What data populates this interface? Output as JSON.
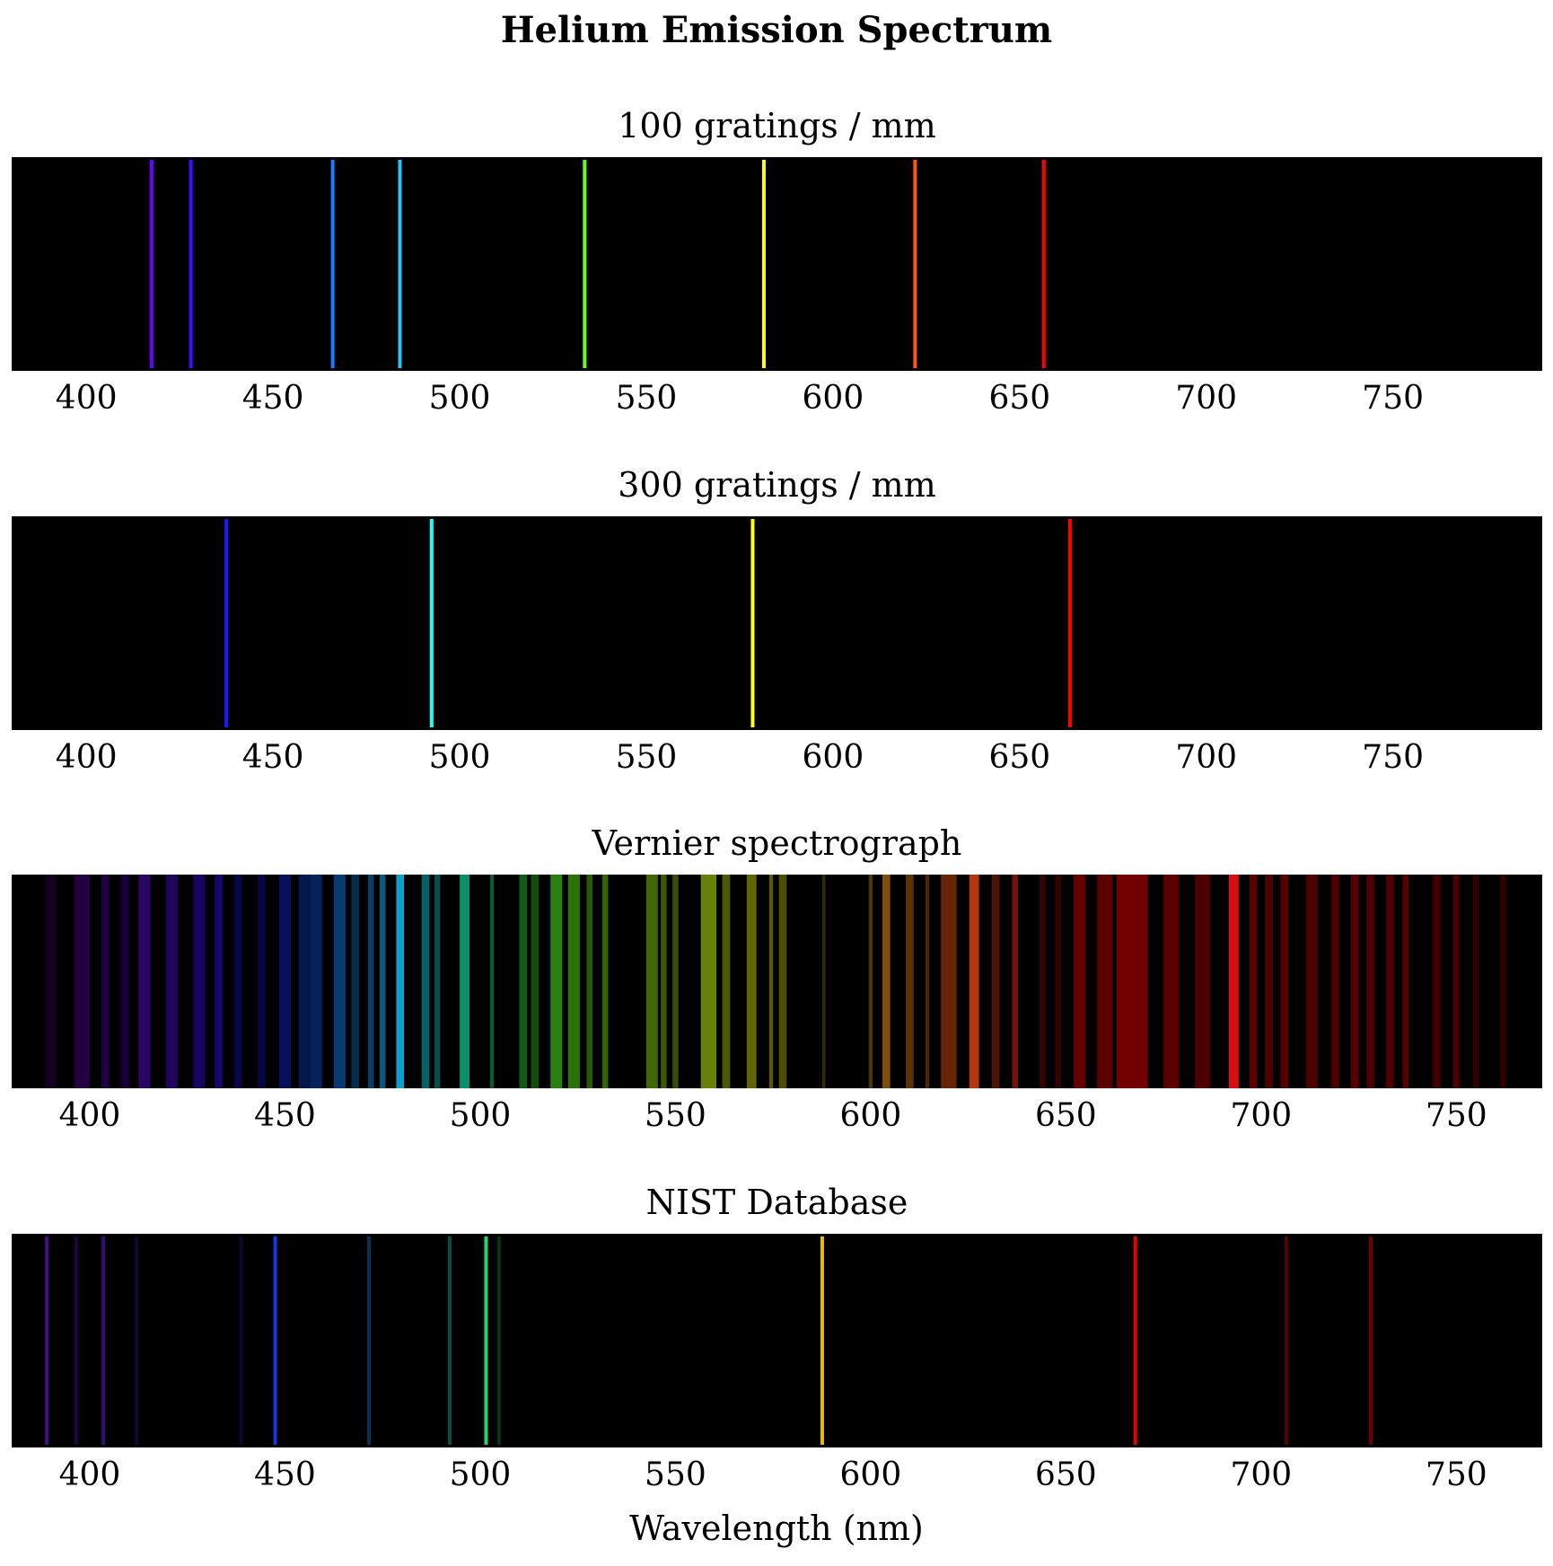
{
  "figure": {
    "title": "Helium Emission Spectrum",
    "xlabel": "Wavelength (nm)"
  },
  "chart_data": [
    {
      "type": "spectrum",
      "title": "100 gratings / mm",
      "xlim": [
        380,
        790
      ],
      "ticks": [
        400,
        450,
        500,
        550,
        600,
        650,
        700,
        750
      ],
      "background": "#000000",
      "lines": [
        {
          "wl": 417.5,
          "color": "#6a00ff",
          "intensity": 1
        },
        {
          "wl": 428,
          "color": "#3a10ff",
          "intensity": 1
        },
        {
          "wl": 466,
          "color": "#1a7cff",
          "intensity": 1
        },
        {
          "wl": 484,
          "color": "#1ec8ff",
          "intensity": 1
        },
        {
          "wl": 533.5,
          "color": "#66ff1a",
          "intensity": 1
        },
        {
          "wl": 581.5,
          "color": "#ffff00",
          "intensity": 1
        },
        {
          "wl": 622,
          "color": "#ff5a00",
          "intensity": 1
        },
        {
          "wl": 656.5,
          "color": "#ff0000",
          "intensity": 1
        }
      ]
    },
    {
      "type": "spectrum",
      "title": "300 gratings / mm",
      "xlim": [
        380,
        790
      ],
      "ticks": [
        400,
        450,
        500,
        550,
        600,
        650,
        700,
        750
      ],
      "background": "#000000",
      "lines": [
        {
          "wl": 437.5,
          "color": "#1a1aff",
          "intensity": 1
        },
        {
          "wl": 492.5,
          "color": "#1affff",
          "intensity": 1
        },
        {
          "wl": 578.5,
          "color": "#ffff1a",
          "intensity": 1
        },
        {
          "wl": 663.5,
          "color": "#ff0000",
          "intensity": 1
        }
      ]
    },
    {
      "type": "spectrum",
      "title": "Vernier spectrograph",
      "xlim": [
        380,
        772
      ],
      "ticks": [
        400,
        450,
        500,
        550,
        600,
        650,
        700,
        750
      ],
      "background": "#000000",
      "bands": [
        {
          "wl": 390,
          "width": 3,
          "color": "#4a007a",
          "intensity": 0.25
        },
        {
          "wl": 398,
          "width": 4,
          "color": "#5a00a0",
          "intensity": 0.4
        },
        {
          "wl": 404,
          "width": 2,
          "color": "#5a00c0",
          "intensity": 0.35
        },
        {
          "wl": 409,
          "width": 2,
          "color": "#5000d0",
          "intensity": 0.3
        },
        {
          "wl": 414,
          "width": 3,
          "color": "#6010e0",
          "intensity": 0.45
        },
        {
          "wl": 421,
          "width": 3,
          "color": "#4a10e0",
          "intensity": 0.4
        },
        {
          "wl": 428,
          "width": 3,
          "color": "#3a10f0",
          "intensity": 0.4
        },
        {
          "wl": 433,
          "width": 2,
          "color": "#2a10f0",
          "intensity": 0.45
        },
        {
          "wl": 438,
          "width": 2,
          "color": "#2010f0",
          "intensity": 0.3
        },
        {
          "wl": 444,
          "width": 2,
          "color": "#1010f0",
          "intensity": 0.3
        },
        {
          "wl": 450,
          "width": 3,
          "color": "#1030ff",
          "intensity": 0.35
        },
        {
          "wl": 455,
          "width": 3,
          "color": "#1050ff",
          "intensity": 0.3
        },
        {
          "wl": 458,
          "width": 3,
          "color": "#1060ff",
          "intensity": 0.35
        },
        {
          "wl": 464,
          "width": 3,
          "color": "#1080ff",
          "intensity": 0.45
        },
        {
          "wl": 468,
          "width": 2,
          "color": "#1090ff",
          "intensity": 0.3
        },
        {
          "wl": 472,
          "width": 1.5,
          "color": "#10a0ff",
          "intensity": 0.4
        },
        {
          "wl": 475,
          "width": 1.5,
          "color": "#10b0ff",
          "intensity": 0.5
        },
        {
          "wl": 479.5,
          "width": 2,
          "color": "#10c8ff",
          "intensity": 0.8
        },
        {
          "wl": 486,
          "width": 2,
          "color": "#10d8e0",
          "intensity": 0.45
        },
        {
          "wl": 489,
          "width": 1.5,
          "color": "#10e0d0",
          "intensity": 0.35
        },
        {
          "wl": 496,
          "width": 2.5,
          "color": "#10f0b0",
          "intensity": 0.6
        },
        {
          "wl": 503,
          "width": 1,
          "color": "#20ff80",
          "intensity": 0.35
        },
        {
          "wl": 511,
          "width": 2,
          "color": "#30ff40",
          "intensity": 0.35
        },
        {
          "wl": 514,
          "width": 2,
          "color": "#40ff30",
          "intensity": 0.3
        },
        {
          "wl": 519.5,
          "width": 3,
          "color": "#50ff20",
          "intensity": 0.5
        },
        {
          "wl": 524,
          "width": 3,
          "color": "#60ff10",
          "intensity": 0.45
        },
        {
          "wl": 528,
          "width": 1.5,
          "color": "#70ff10",
          "intensity": 0.35
        },
        {
          "wl": 532,
          "width": 1.5,
          "color": "#80ff10",
          "intensity": 0.4
        },
        {
          "wl": 544,
          "width": 3,
          "color": "#a0ff10",
          "intensity": 0.4
        },
        {
          "wl": 547,
          "width": 1.5,
          "color": "#b0ff10",
          "intensity": 0.35
        },
        {
          "wl": 550,
          "width": 1.5,
          "color": "#b8ff10",
          "intensity": 0.3
        },
        {
          "wl": 558.5,
          "width": 4,
          "color": "#d0ff10",
          "intensity": 0.5
        },
        {
          "wl": 563,
          "width": 2,
          "color": "#e0ff10",
          "intensity": 0.35
        },
        {
          "wl": 569.5,
          "width": 2.5,
          "color": "#f0ff10",
          "intensity": 0.4
        },
        {
          "wl": 574.5,
          "width": 1,
          "color": "#ffff10",
          "intensity": 0.35
        },
        {
          "wl": 577.5,
          "width": 2,
          "color": "#ffff10",
          "intensity": 0.3
        },
        {
          "wl": 588,
          "width": 0.8,
          "color": "#ffdd10",
          "intensity": 0.2
        },
        {
          "wl": 600,
          "width": 1,
          "color": "#ffb010",
          "intensity": 0.3
        },
        {
          "wl": 604,
          "width": 2,
          "color": "#ffa010",
          "intensity": 0.5
        },
        {
          "wl": 610,
          "width": 2,
          "color": "#ff9010",
          "intensity": 0.35
        },
        {
          "wl": 614.5,
          "width": 1,
          "color": "#ff8010",
          "intensity": 0.3
        },
        {
          "wl": 620,
          "width": 4,
          "color": "#ff6010",
          "intensity": 0.4
        },
        {
          "wl": 626.5,
          "width": 2.5,
          "color": "#ff5010",
          "intensity": 0.7
        },
        {
          "wl": 632,
          "width": 2,
          "color": "#ff4010",
          "intensity": 0.3
        },
        {
          "wl": 637,
          "width": 1.5,
          "color": "#ff3010",
          "intensity": 0.45
        },
        {
          "wl": 644,
          "width": 1.5,
          "color": "#ff2010",
          "intensity": 0.2
        },
        {
          "wl": 648,
          "width": 1.5,
          "color": "#ff1010",
          "intensity": 0.2
        },
        {
          "wl": 653.5,
          "width": 3,
          "color": "#ff0000",
          "intensity": 0.4
        },
        {
          "wl": 660,
          "width": 4,
          "color": "#ff0000",
          "intensity": 0.35
        },
        {
          "wl": 667,
          "width": 8,
          "color": "#ff0000",
          "intensity": 0.45
        },
        {
          "wl": 677,
          "width": 4,
          "color": "#ff0000",
          "intensity": 0.35
        },
        {
          "wl": 685,
          "width": 4,
          "color": "#ff0000",
          "intensity": 0.3
        },
        {
          "wl": 693,
          "width": 2.5,
          "color": "#ff1010",
          "intensity": 0.85
        },
        {
          "wl": 698,
          "width": 2,
          "color": "#ff0000",
          "intensity": 0.35
        },
        {
          "wl": 702,
          "width": 2,
          "color": "#ff0000",
          "intensity": 0.3
        },
        {
          "wl": 706,
          "width": 2,
          "color": "#ff0000",
          "intensity": 0.35
        },
        {
          "wl": 713,
          "width": 3,
          "color": "#ff0000",
          "intensity": 0.3
        },
        {
          "wl": 719,
          "width": 2,
          "color": "#ff0000",
          "intensity": 0.3
        },
        {
          "wl": 724,
          "width": 2,
          "color": "#ff0000",
          "intensity": 0.35
        },
        {
          "wl": 728,
          "width": 2,
          "color": "#ff0000",
          "intensity": 0.3
        },
        {
          "wl": 733,
          "width": 2,
          "color": "#ff0000",
          "intensity": 0.3
        },
        {
          "wl": 737,
          "width": 1.5,
          "color": "#ff0000",
          "intensity": 0.35
        },
        {
          "wl": 745,
          "width": 2,
          "color": "#ff0000",
          "intensity": 0.25
        },
        {
          "wl": 750,
          "width": 1.5,
          "color": "#ff0000",
          "intensity": 0.3
        },
        {
          "wl": 755,
          "width": 1.5,
          "color": "#ff0000",
          "intensity": 0.2
        },
        {
          "wl": 762,
          "width": 1.5,
          "color": "#ff0000",
          "intensity": 0.2
        }
      ]
    },
    {
      "type": "spectrum",
      "title": "NIST Database",
      "xlim": [
        380,
        772
      ],
      "ticks": [
        400,
        450,
        500,
        550,
        600,
        650,
        700,
        750
      ],
      "background": "#000000",
      "lines": [
        {
          "wl": 389,
          "color": "#8a20ff",
          "intensity": 0.5
        },
        {
          "wl": 396.5,
          "color": "#7a10ff",
          "intensity": 0.25
        },
        {
          "wl": 403.5,
          "color": "#7020ff",
          "intensity": 0.45
        },
        {
          "wl": 412,
          "color": "#6020ff",
          "intensity": 0.2
        },
        {
          "wl": 438.8,
          "color": "#4020ff",
          "intensity": 0.2
        },
        {
          "wl": 447.5,
          "color": "#1040ff",
          "intensity": 0.9
        },
        {
          "wl": 471.5,
          "color": "#1090ff",
          "intensity": 0.35
        },
        {
          "wl": 492.2,
          "color": "#10e0c0",
          "intensity": 0.35
        },
        {
          "wl": 501.5,
          "color": "#20ff80",
          "intensity": 0.85
        },
        {
          "wl": 504.8,
          "color": "#30ff60",
          "intensity": 0.2
        },
        {
          "wl": 587.6,
          "color": "#ffd000",
          "intensity": 0.9
        },
        {
          "wl": 667.8,
          "color": "#ff0000",
          "intensity": 0.9
        },
        {
          "wl": 706.5,
          "color": "#ff0000",
          "intensity": 0.35
        },
        {
          "wl": 728.1,
          "color": "#ff0000",
          "intensity": 0.45
        }
      ]
    }
  ]
}
